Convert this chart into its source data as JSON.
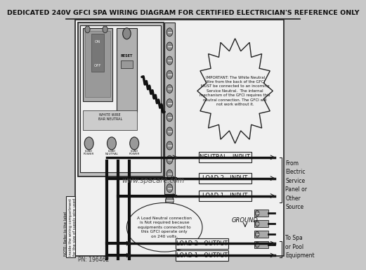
{
  "title": "DEDICATED 240V GFCI SPA WIRING DIAGRAM FOR CERTIFIED ELECTRICIAN'S REFERENCE ONLY",
  "title_fontsize": 6.8,
  "bg_color": "#c8c8c8",
  "white": "#f0f0f0",
  "important_text": "IMPORTANT: The White Neutral\nWire from the back of the GFCI\nMUST be connected to an incoming\nService Neutral.  The internal\nmechanism of the GFCI requires this\nneutral connection. The GFCI will\nnot work without it.",
  "note_text": "NOTE: Refer to the label\ninside the wiring compartment\nfor the size of supply wire used.",
  "pn_text": "PN: 196462",
  "website": "www.spacare.com",
  "load_neutral_text": "A Load Neutral connection\nis Not required because\nequipments connected to\nthis GFCI operate only\non 240 volts.",
  "from_text": "From\nElectric\nService\nPanel or\nOther\nSource",
  "to_text": "To Spa\nor Pool\nEquipment",
  "lc": "#222222",
  "dark": "#333333",
  "wire_color": "#111111",
  "label_fill": "#e8e8e8",
  "breaker_fill": "#b0b0b0",
  "strip_fill": "#d8d8d8"
}
